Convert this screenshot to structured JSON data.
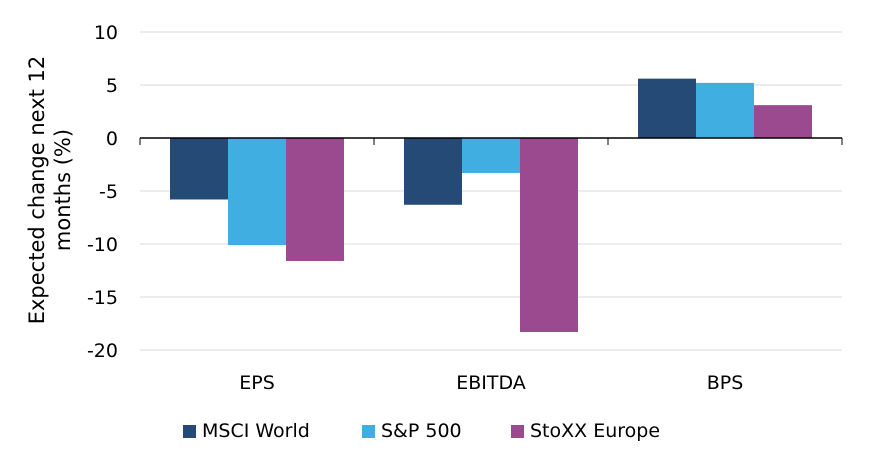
{
  "chart_data": {
    "type": "bar",
    "title": "",
    "xlabel": "",
    "ylabel": "Expected change next 12 months (%)",
    "ylabel_lines": [
      "Expected change next 12",
      "months (%)"
    ],
    "ylim": [
      -20,
      10
    ],
    "yticks": [
      -20,
      -15,
      -10,
      -5,
      0,
      5,
      10
    ],
    "ytick_labels": [
      "-20",
      "-15",
      "-10",
      "-5",
      "0",
      "5",
      "10"
    ],
    "grid": true,
    "legend_position": "bottom",
    "categories": [
      "EPS",
      "EBITDA",
      "BPS"
    ],
    "series": [
      {
        "name": "MSCI World",
        "color": "#254a76",
        "values": [
          -5.8,
          -6.3,
          5.6
        ]
      },
      {
        "name": "S&P 500",
        "color": "#41aee2",
        "values": [
          -10.1,
          -3.3,
          5.2
        ]
      },
      {
        "name": "StoXX Europe",
        "color": "#9b4a90",
        "values": [
          -11.6,
          -18.3,
          3.1
        ]
      }
    ]
  }
}
